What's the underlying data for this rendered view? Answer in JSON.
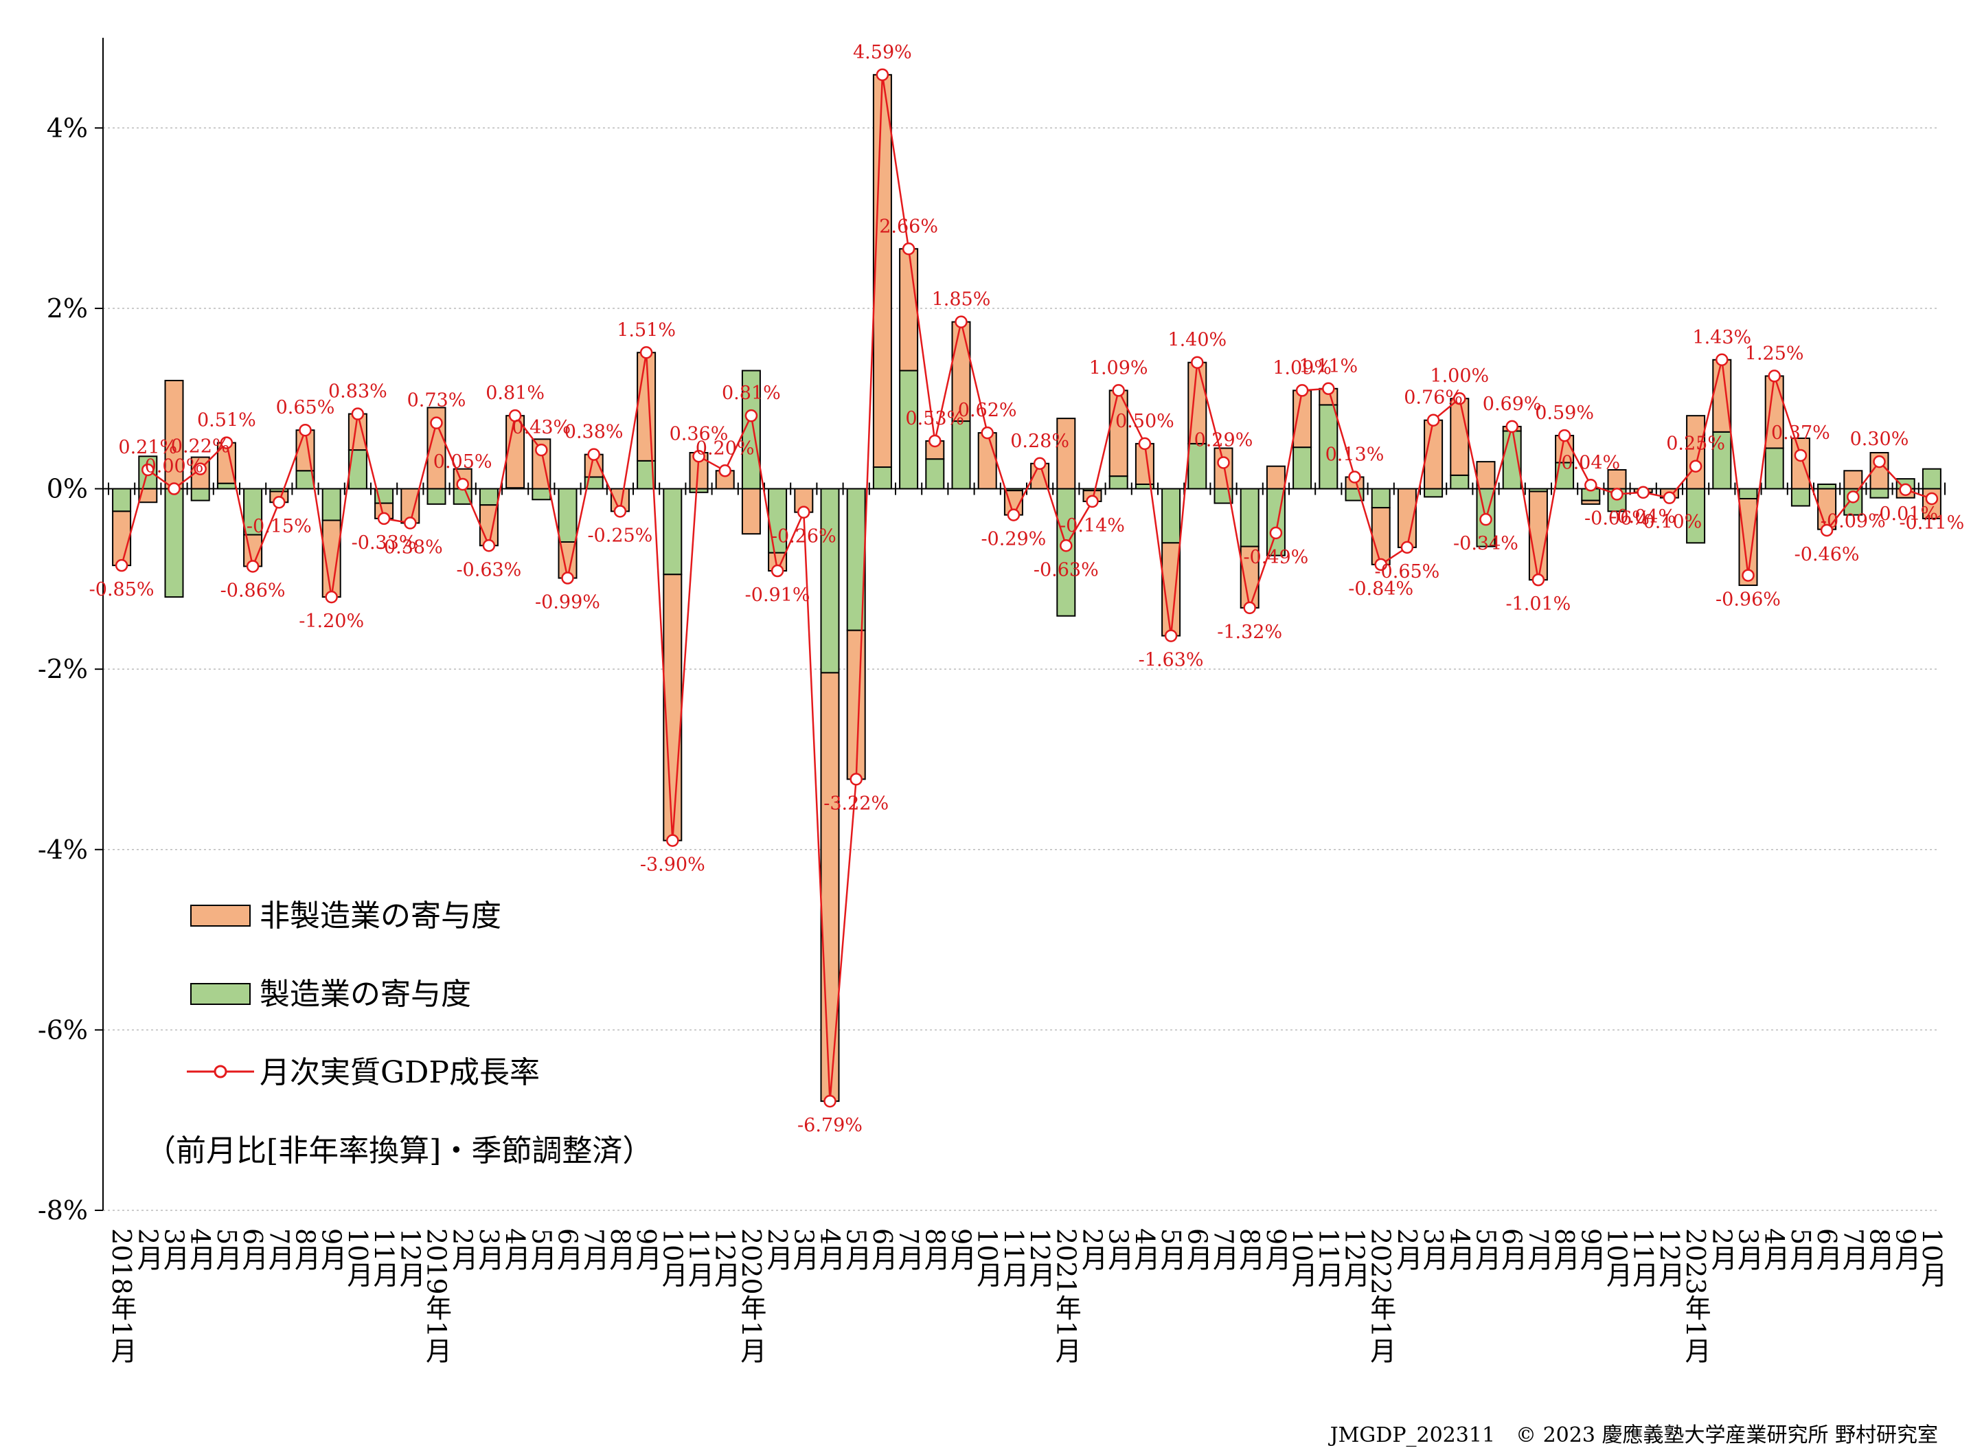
{
  "chart_data": {
    "type": "bar",
    "stacked": true,
    "ylim": [
      -8,
      5
    ],
    "yticks": [
      -8,
      -6,
      -4,
      -2,
      0,
      2,
      4
    ],
    "ytick_format": "%",
    "grid": "horizontal dotted",
    "legend_placement": "lower-left",
    "categories": [
      "2018年1月",
      "2月",
      "3月",
      "4月",
      "5月",
      "6月",
      "7月",
      "8月",
      "9月",
      "10月",
      "11月",
      "12月",
      "2019年1月",
      "2月",
      "3月",
      "4月",
      "5月",
      "6月",
      "7月",
      "8月",
      "9月",
      "10月",
      "11月",
      "12月",
      "2020年1月",
      "2月",
      "3月",
      "4月",
      "5月",
      "6月",
      "7月",
      "8月",
      "9月",
      "10月",
      "11月",
      "12月",
      "2021年1月",
      "2月",
      "3月",
      "4月",
      "5月",
      "6月",
      "7月",
      "8月",
      "9月",
      "10月",
      "11月",
      "12月",
      "2022年1月",
      "2月",
      "3月",
      "4月",
      "5月",
      "6月",
      "7月",
      "8月",
      "9月",
      "10月",
      "11月",
      "12月",
      "2023年1月",
      "2月",
      "3月",
      "4月",
      "5月",
      "6月",
      "7月",
      "8月",
      "9月",
      "10月"
    ],
    "series": [
      {
        "name": "非製造業の寄与度",
        "color": "#f4b183",
        "values": [
          -0.6,
          -0.15,
          1.2,
          0.35,
          0.45,
          -0.35,
          -0.12,
          0.45,
          -0.85,
          0.4,
          -0.17,
          -0.38,
          0.9,
          0.22,
          -0.45,
          0.8,
          0.55,
          -0.4,
          0.25,
          -0.25,
          1.2,
          -2.95,
          0.4,
          0.2,
          -0.5,
          -0.2,
          -0.26,
          -4.75,
          -1.65,
          4.35,
          1.35,
          0.2,
          1.1,
          0.62,
          -0.27,
          0.28,
          0.78,
          -0.12,
          0.95,
          0.45,
          -1.03,
          0.9,
          0.45,
          -0.68,
          0.25,
          0.63,
          0.18,
          0.13,
          -0.63,
          -0.65,
          0.76,
          0.85,
          0.3,
          0.05,
          -0.98,
          0.3,
          -0.04,
          0.21,
          -0.04,
          -0.1,
          0.81,
          0.8,
          -0.96,
          0.8,
          0.56,
          -0.45,
          0.2,
          0.4,
          -0.1,
          -0.33
        ]
      },
      {
        "name": "製造業の寄与度",
        "color": "#a9d18e",
        "values": [
          -0.25,
          0.36,
          -1.2,
          -0.13,
          0.06,
          -0.51,
          -0.03,
          0.2,
          -0.35,
          0.43,
          -0.16,
          0,
          -0.17,
          -0.17,
          -0.18,
          0.01,
          -0.12,
          -0.59,
          0.13,
          0,
          0.31,
          -0.95,
          -0.04,
          0,
          1.31,
          -0.71,
          0,
          -2.04,
          -1.57,
          0.24,
          1.31,
          0.33,
          0.75,
          0,
          -0.02,
          0,
          -1.41,
          -0.02,
          0.14,
          0.05,
          -0.6,
          0.5,
          -0.16,
          -0.64,
          -0.74,
          0.46,
          0.93,
          -0.13,
          -0.21,
          0,
          -0.09,
          0.15,
          -0.64,
          0.64,
          -0.03,
          0.29,
          -0.13,
          -0.25,
          0,
          0,
          -0.6,
          0.63,
          -0.11,
          0.45,
          -0.19,
          0.05,
          -0.29,
          -0.1,
          0.11,
          0.22
        ]
      },
      {
        "name": "月次実質GDP成長率",
        "color": "#e41a1c",
        "type": "line",
        "values": [
          -0.85,
          0.21,
          0.0,
          0.22,
          0.51,
          -0.86,
          -0.15,
          0.65,
          -1.2,
          0.83,
          -0.33,
          -0.38,
          0.73,
          0.05,
          -0.63,
          0.81,
          0.43,
          -0.99,
          0.38,
          -0.25,
          1.51,
          -3.9,
          0.36,
          0.2,
          0.81,
          -0.91,
          -0.26,
          -6.79,
          -3.22,
          4.59,
          2.66,
          0.53,
          1.85,
          0.62,
          -0.29,
          0.28,
          -0.63,
          -0.14,
          1.09,
          0.5,
          -1.63,
          1.4,
          0.29,
          -1.32,
          -0.49,
          1.09,
          1.11,
          0.13,
          -0.84,
          -0.65,
          0.76,
          1.0,
          -0.34,
          0.69,
          -1.01,
          0.59,
          0.04,
          -0.06,
          -0.04,
          -0.1,
          0.25,
          1.43,
          -0.96,
          1.25,
          0.37,
          -0.46,
          -0.09,
          0.3,
          -0.01,
          -0.11
        ]
      }
    ],
    "data_labels": [
      "-0.85%",
      "0.21%",
      "0.00%",
      "0.22%",
      "0.51%",
      "-0.86%",
      "-0.15%",
      "0.65%",
      "-1.20%",
      "0.83%",
      "-0.33%",
      "-0.38%",
      "0.73%",
      "0.05%",
      "-0.63%",
      "0.81%",
      "0.43%",
      "-0.99%",
      "0.38%",
      "-0.25%",
      "1.51%",
      "-3.90%",
      "0.36%",
      "0.20%",
      "0.81%",
      "-0.91%",
      "-0.26%",
      "-6.79%",
      "-3.22%",
      "4.59%",
      "2.66%",
      "0.53%",
      "1.85%",
      "0.62%",
      "-0.29%",
      "0.28%",
      "-0.63%",
      "-0.14%",
      "1.09%",
      "0.50%",
      "-1.63%",
      "1.40%",
      "0.29%",
      "-1.32%",
      "-0.49%",
      "1.09%",
      "1.11%",
      "0.13%",
      "-0.84%",
      "-0.65%",
      "0.76%",
      "1.00%",
      "-0.34%",
      "0.69%",
      "-1.01%",
      "0.59%",
      "0.04%",
      "-0.06%",
      "-0.04%",
      "-0.10%",
      "0.25%",
      "1.43%",
      "-0.96%",
      "1.25%",
      "0.37%",
      "-0.46%",
      "-0.09%",
      "0.30%",
      "-0.01%",
      "-0.11%"
    ]
  },
  "legend": {
    "items": [
      "非製造業の寄与度",
      "製造業の寄与度",
      "月次実質GDP成長率"
    ],
    "note": "（前月比[非年率換算]・季節調整済）"
  },
  "footer": "JMGDP_202311　© 2023 慶應義塾大学産業研究所 野村研究室"
}
